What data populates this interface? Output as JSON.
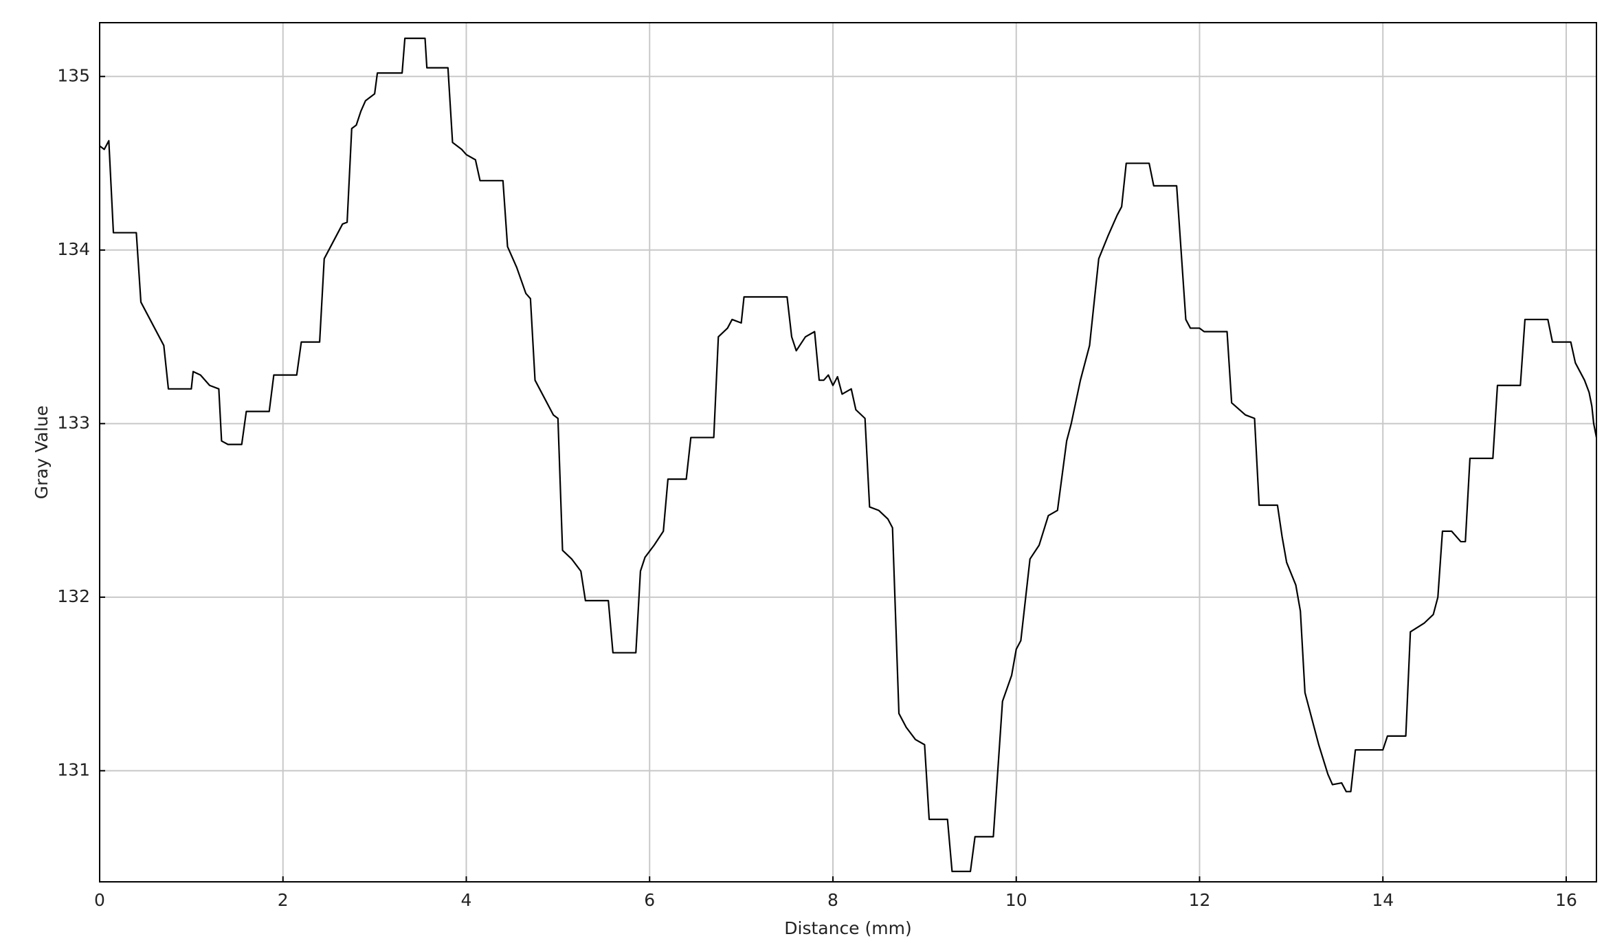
{
  "chart_data": {
    "type": "line",
    "xlabel": "Distance (mm)",
    "ylabel": "Gray Value",
    "color": "#000000",
    "grid": true,
    "xlim": [
      0,
      16.33
    ],
    "ylim": [
      130.36,
      135.31
    ],
    "xticks": [
      0,
      2,
      4,
      6,
      8,
      10,
      12,
      14,
      16
    ],
    "yticks": [
      131,
      132,
      133,
      134,
      135
    ],
    "x": [
      0,
      0.05,
      0.1,
      0.15,
      0.4,
      0.45,
      0.5,
      0.6,
      0.7,
      0.75,
      1.0,
      1.02,
      1.1,
      1.2,
      1.3,
      1.33,
      1.4,
      1.55,
      1.6,
      1.85,
      1.9,
      2.15,
      2.2,
      2.4,
      2.45,
      2.55,
      2.65,
      2.7,
      2.75,
      2.8,
      2.85,
      2.9,
      3.0,
      3.03,
      3.3,
      3.33,
      3.55,
      3.57,
      3.8,
      3.85,
      3.95,
      4.0,
      4.1,
      4.15,
      4.4,
      4.45,
      4.55,
      4.65,
      4.7,
      4.75,
      4.85,
      4.95,
      5.0,
      5.05,
      5.15,
      5.25,
      5.3,
      5.55,
      5.6,
      5.85,
      5.9,
      5.95,
      6.05,
      6.15,
      6.2,
      6.4,
      6.45,
      6.7,
      6.75,
      6.85,
      6.9,
      7.0,
      7.03,
      7.5,
      7.55,
      7.6,
      7.7,
      7.8,
      7.85,
      7.9,
      7.95,
      8.0,
      8.05,
      8.1,
      8.2,
      8.25,
      8.35,
      8.4,
      8.5,
      8.6,
      8.65,
      8.72,
      8.8,
      8.9,
      9.0,
      9.05,
      9.25,
      9.3,
      9.5,
      9.55,
      9.75,
      9.85,
      9.95,
      10.0,
      10.05,
      10.15,
      10.25,
      10.35,
      10.45,
      10.55,
      10.6,
      10.7,
      10.8,
      10.9,
      11.0,
      11.1,
      11.15,
      11.2,
      11.45,
      11.5,
      11.75,
      11.85,
      11.9,
      12.0,
      12.05,
      12.3,
      12.35,
      12.5,
      12.6,
      12.65,
      12.85,
      12.9,
      12.95,
      13.05,
      13.1,
      13.15,
      13.3,
      13.4,
      13.45,
      13.55,
      13.6,
      13.65,
      13.7,
      14.0,
      14.05,
      14.25,
      14.3,
      14.45,
      14.55,
      14.6,
      14.65,
      14.75,
      14.85,
      14.9,
      14.95,
      15.2,
      15.25,
      15.5,
      15.55,
      15.8,
      15.85,
      16.05,
      16.1,
      16.2,
      16.25,
      16.28,
      16.3,
      16.33
    ],
    "values": [
      134.6,
      134.58,
      134.63,
      134.1,
      134.1,
      133.7,
      133.65,
      133.55,
      133.45,
      133.2,
      133.2,
      133.3,
      133.28,
      133.22,
      133.2,
      132.9,
      132.88,
      132.88,
      133.07,
      133.07,
      133.28,
      133.28,
      133.47,
      133.47,
      133.95,
      134.05,
      134.15,
      134.16,
      134.7,
      134.72,
      134.8,
      134.86,
      134.9,
      135.02,
      135.02,
      135.22,
      135.22,
      135.05,
      135.05,
      134.62,
      134.58,
      134.55,
      134.52,
      134.4,
      134.4,
      134.02,
      133.9,
      133.75,
      133.72,
      133.25,
      133.15,
      133.05,
      133.03,
      132.27,
      132.22,
      132.15,
      131.98,
      131.98,
      131.68,
      131.68,
      132.15,
      132.23,
      132.3,
      132.38,
      132.68,
      132.68,
      132.92,
      132.92,
      133.5,
      133.55,
      133.6,
      133.58,
      133.73,
      133.73,
      133.5,
      133.42,
      133.5,
      133.53,
      133.25,
      133.25,
      133.28,
      133.22,
      133.27,
      133.17,
      133.2,
      133.08,
      133.03,
      132.52,
      132.5,
      132.45,
      132.4,
      131.33,
      131.25,
      131.18,
      131.15,
      130.72,
      130.72,
      130.42,
      130.42,
      130.62,
      130.62,
      131.4,
      131.55,
      131.7,
      131.75,
      132.22,
      132.3,
      132.47,
      132.5,
      132.9,
      133.0,
      133.25,
      133.45,
      133.95,
      134.08,
      134.2,
      134.25,
      134.5,
      134.5,
      134.37,
      134.37,
      133.6,
      133.55,
      133.55,
      133.53,
      133.53,
      133.12,
      133.05,
      133.03,
      132.53,
      132.53,
      132.35,
      132.2,
      132.07,
      131.92,
      131.45,
      131.15,
      130.98,
      130.92,
      130.93,
      130.88,
      130.88,
      131.12,
      131.12,
      131.2,
      131.2,
      131.8,
      131.85,
      131.9,
      132.0,
      132.38,
      132.38,
      132.32,
      132.32,
      132.8,
      132.8,
      133.22,
      133.22,
      133.6,
      133.6,
      133.47,
      133.47,
      133.35,
      133.25,
      133.18,
      133.1,
      133.0,
      132.92
    ]
  }
}
